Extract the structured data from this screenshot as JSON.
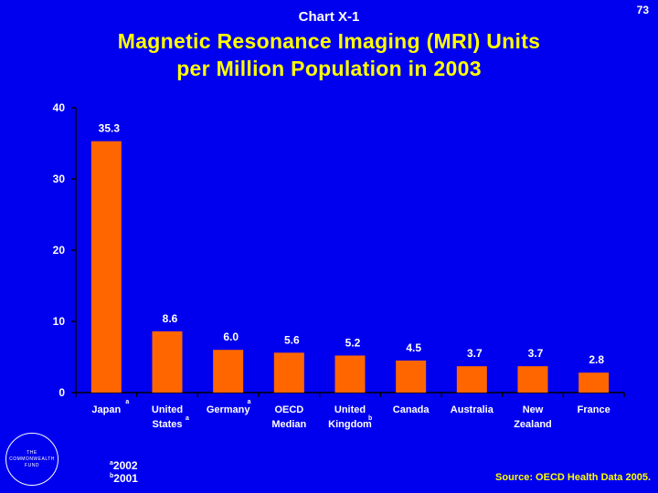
{
  "header": {
    "chart_label": "Chart X-1",
    "page_number": "73",
    "title_line1": "Magnetic Resonance Imaging (MRI) Units",
    "title_line2": "per Million Population in 2003"
  },
  "footnotes": {
    "a_mark": "a",
    "a_text": "2002",
    "b_mark": "b",
    "b_text": "2001"
  },
  "source": "Source: OECD Health Data 2005.",
  "logo": {
    "line1": "THE",
    "line2": "COMMONWEALTH",
    "line3": "FUND"
  },
  "colors": {
    "background": "#0000ee",
    "bar": "#ff6600",
    "title": "#ffff00",
    "text": "#ffffff"
  },
  "chart_data": {
    "type": "bar",
    "categories": [
      {
        "line1": "Japan",
        "line2": "",
        "footnote": "a"
      },
      {
        "line1": "United",
        "line2": "States",
        "footnote": "a"
      },
      {
        "line1": "Germany",
        "line2": "",
        "footnote": "a"
      },
      {
        "line1": "OECD",
        "line2": "Median",
        "footnote": ""
      },
      {
        "line1": "United",
        "line2": "Kingdom",
        "footnote": "b"
      },
      {
        "line1": "Canada",
        "line2": "",
        "footnote": ""
      },
      {
        "line1": "Australia",
        "line2": "",
        "footnote": ""
      },
      {
        "line1": "New",
        "line2": "Zealand",
        "footnote": ""
      },
      {
        "line1": "France",
        "line2": "",
        "footnote": ""
      }
    ],
    "values": [
      35.3,
      8.6,
      6.0,
      5.6,
      5.2,
      4.5,
      3.7,
      3.7,
      2.8
    ],
    "value_labels": [
      "35.3",
      "8.6",
      "6.0",
      "5.6",
      "5.2",
      "4.5",
      "3.7",
      "3.7",
      "2.8"
    ],
    "ylim": [
      0,
      40
    ],
    "yticks": [
      0,
      10,
      20,
      30,
      40
    ],
    "grid": false,
    "legend": "none"
  }
}
